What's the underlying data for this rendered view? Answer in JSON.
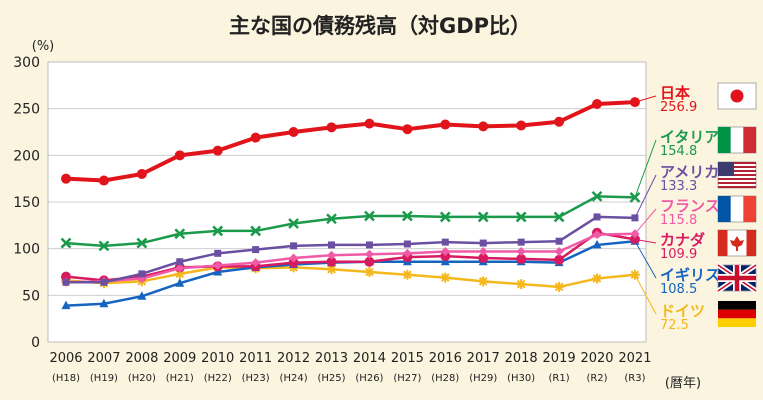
{
  "chart_data": {
    "type": "line",
    "title": "主な国の債務残高（対GDP比）",
    "ylabel": "(%)",
    "xlabel": "(暦年)",
    "ylim": [
      0,
      300
    ],
    "yticks": [
      0,
      50,
      100,
      150,
      200,
      250,
      300
    ],
    "grid": true,
    "legend_position": "right",
    "categories": [
      "2006",
      "2007",
      "2008",
      "2009",
      "2010",
      "2011",
      "2012",
      "2013",
      "2014",
      "2015",
      "2016",
      "2017",
      "2018",
      "2019",
      "2020",
      "2021"
    ],
    "era_labels": [
      "(H18)",
      "(H19)",
      "(H20)",
      "(H21)",
      "(H22)",
      "(H23)",
      "(H24)",
      "(H25)",
      "(H26)",
      "(H27)",
      "(H28)",
      "(H29)",
      "(H30)",
      "(R1)",
      "(R2)",
      "(R3)"
    ],
    "series": [
      {
        "name": "日本",
        "value_label": "256.9",
        "color": "#e2141b",
        "marker": "circle",
        "flag": "japan",
        "values": [
          175,
          173,
          180,
          200,
          205,
          219,
          225,
          230,
          234,
          228,
          233,
          231,
          232,
          236,
          255,
          257
        ]
      },
      {
        "name": "イタリア",
        "value_label": "154.8",
        "color": "#1a9a4a",
        "marker": "x",
        "flag": "italy",
        "values": [
          106,
          103,
          106,
          116,
          119,
          119,
          127,
          132,
          135,
          135,
          134,
          134,
          134,
          134,
          156,
          155
        ]
      },
      {
        "name": "アメリカ",
        "value_label": "133.3",
        "color": "#6b4fa1",
        "marker": "square",
        "flag": "usa",
        "values": [
          64,
          64,
          73,
          86,
          95,
          99,
          103,
          104,
          104,
          105,
          107,
          106,
          107,
          108,
          134,
          133
        ]
      },
      {
        "name": "フランス",
        "value_label": "115.8",
        "color": "#f05aa6",
        "marker": "diamond",
        "flag": "france",
        "values": [
          64,
          65,
          68,
          79,
          82,
          85,
          90,
          93,
          94,
          95,
          97,
          97,
          97,
          97,
          115,
          116
        ]
      },
      {
        "name": "カナダ",
        "value_label": "109.9",
        "color": "#d81b60",
        "marker": "circle",
        "flag": "canada",
        "values": [
          70,
          66,
          70,
          80,
          81,
          81,
          85,
          86,
          86,
          91,
          92,
          90,
          89,
          88,
          117,
          110
        ]
      },
      {
        "name": "イギリス",
        "value_label": "108.5",
        "color": "#1565c0",
        "marker": "triangle",
        "flag": "uk",
        "values": [
          39,
          41,
          49,
          63,
          75,
          80,
          83,
          85,
          86,
          86,
          86,
          86,
          86,
          85,
          104,
          108
        ]
      },
      {
        "name": "ドイツ",
        "value_label": "72.5",
        "color": "#f5b81c",
        "marker": "star",
        "flag": "germany",
        "values": [
          66,
          63,
          65,
          73,
          80,
          79,
          80,
          78,
          75,
          72,
          69,
          65,
          62,
          59,
          68,
          72
        ]
      }
    ]
  }
}
